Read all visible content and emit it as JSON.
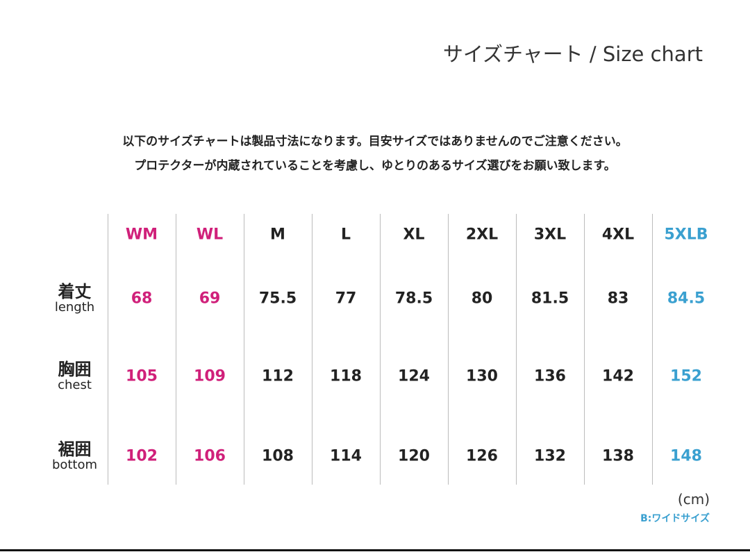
{
  "title": "サイズチャート / Size chart",
  "notes": [
    "以下のサイズチャートは製品寸法になります。目安サイズではありませんのでご注意ください。",
    "プロテクターが内蔵されていることを考慮し、ゆとりのあるサイズ選びをお願い致します。"
  ],
  "colors": {
    "women": "#d0207a",
    "wide": "#3aa0d0",
    "normal": "#222222"
  },
  "sizes": [
    "WM",
    "WL",
    "M",
    "L",
    "XL",
    "2XL",
    "3XL",
    "4XL",
    "5XLB"
  ],
  "rows": [
    {
      "jp": "着丈",
      "en": "length",
      "values": [
        "68",
        "69",
        "75.5",
        "77",
        "78.5",
        "80",
        "81.5",
        "83",
        "84.5"
      ]
    },
    {
      "jp": "胸囲",
      "en": "chest",
      "values": [
        "105",
        "109",
        "112",
        "118",
        "124",
        "130",
        "136",
        "142",
        "152"
      ]
    },
    {
      "jp": "裾囲",
      "en": "bottom",
      "values": [
        "102",
        "106",
        "108",
        "114",
        "120",
        "126",
        "132",
        "138",
        "148"
      ]
    }
  ],
  "unit": "(cm)",
  "wide_note": "B:ワイドサイズ"
}
